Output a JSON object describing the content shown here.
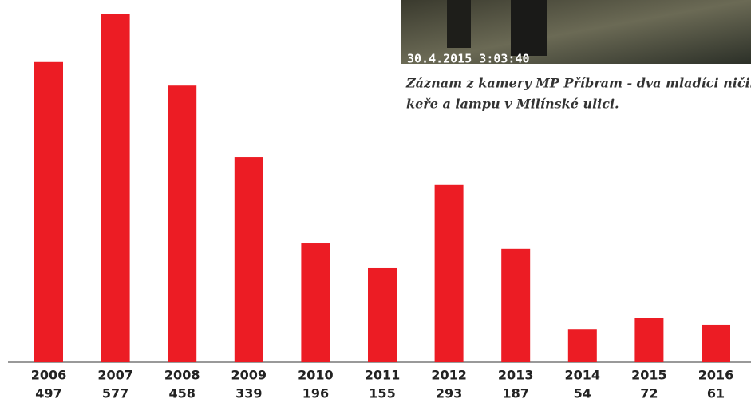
{
  "chart_data": {
    "type": "bar",
    "categories": [
      "2006",
      "2007",
      "2008",
      "2009",
      "2010",
      "2011",
      "2012",
      "2013",
      "2014",
      "2015",
      "2016"
    ],
    "values": [
      497,
      577,
      458,
      339,
      196,
      155,
      293,
      187,
      54,
      72,
      61
    ],
    "color": "#ec1c24",
    "ylim": [
      0,
      600
    ],
    "photo_timestamp": "30.4.2015 3:03:40",
    "caption": [
      "Záznam z kamery MP Příbram - dva mladíci ničili",
      "keře a lampu v Milínské ulici."
    ]
  }
}
